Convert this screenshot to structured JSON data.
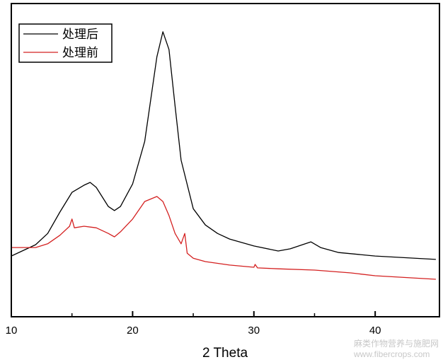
{
  "chart_data": {
    "type": "line",
    "title": "",
    "xlabel": "2 Theta",
    "ylabel": "",
    "xlim": [
      10,
      45.3
    ],
    "ylim": [
      0,
      100
    ],
    "xticks": [
      10,
      20,
      30,
      40
    ],
    "minor_xticks": [
      15,
      25,
      35
    ],
    "grid": false,
    "legend_placement": "top-left",
    "series": [
      {
        "name": "处理后",
        "color": "#000000",
        "x": [
          10,
          12,
          13,
          14,
          15,
          16,
          16.5,
          17,
          18,
          18.5,
          19,
          20,
          21,
          21.5,
          22,
          22.5,
          23,
          23.5,
          24,
          25,
          26,
          27,
          28,
          30,
          32,
          33,
          34,
          34.7,
          35.5,
          37,
          40,
          45
        ],
        "y": [
          19.4,
          23,
          26.6,
          33.4,
          39.7,
          42,
          42.9,
          41.3,
          35.2,
          33.9,
          35.2,
          42.4,
          56,
          69.5,
          83,
          91,
          85.3,
          67.3,
          50,
          34.5,
          29.3,
          26.6,
          24.8,
          22.6,
          21,
          21.7,
          23,
          23.9,
          22.1,
          20.5,
          19.4,
          18.3
        ]
      },
      {
        "name": "处理前",
        "color": "#d42020",
        "x": [
          10,
          12,
          13,
          14,
          14.8,
          15,
          15.2,
          16,
          17,
          18,
          18.5,
          19,
          20,
          21,
          22,
          22.5,
          23,
          23.5,
          24,
          24.3,
          24.5,
          25,
          26,
          28,
          30,
          30.1,
          30.3,
          32,
          35,
          38,
          40,
          45
        ],
        "y": [
          22.1,
          22.1,
          23.3,
          26,
          28.9,
          31.2,
          28.4,
          28.9,
          28.4,
          26.6,
          25.5,
          27.1,
          31.2,
          36.8,
          38.4,
          36.8,
          32.3,
          26.6,
          23.3,
          26.6,
          20.3,
          18.7,
          17.6,
          16.5,
          15.8,
          16.7,
          15.6,
          15.3,
          14.9,
          14,
          13.1,
          11.96
        ]
      }
    ]
  },
  "watermark": {
    "line1": "麻类作物营养与施肥网",
    "line2": "www.fibercrops.com"
  }
}
